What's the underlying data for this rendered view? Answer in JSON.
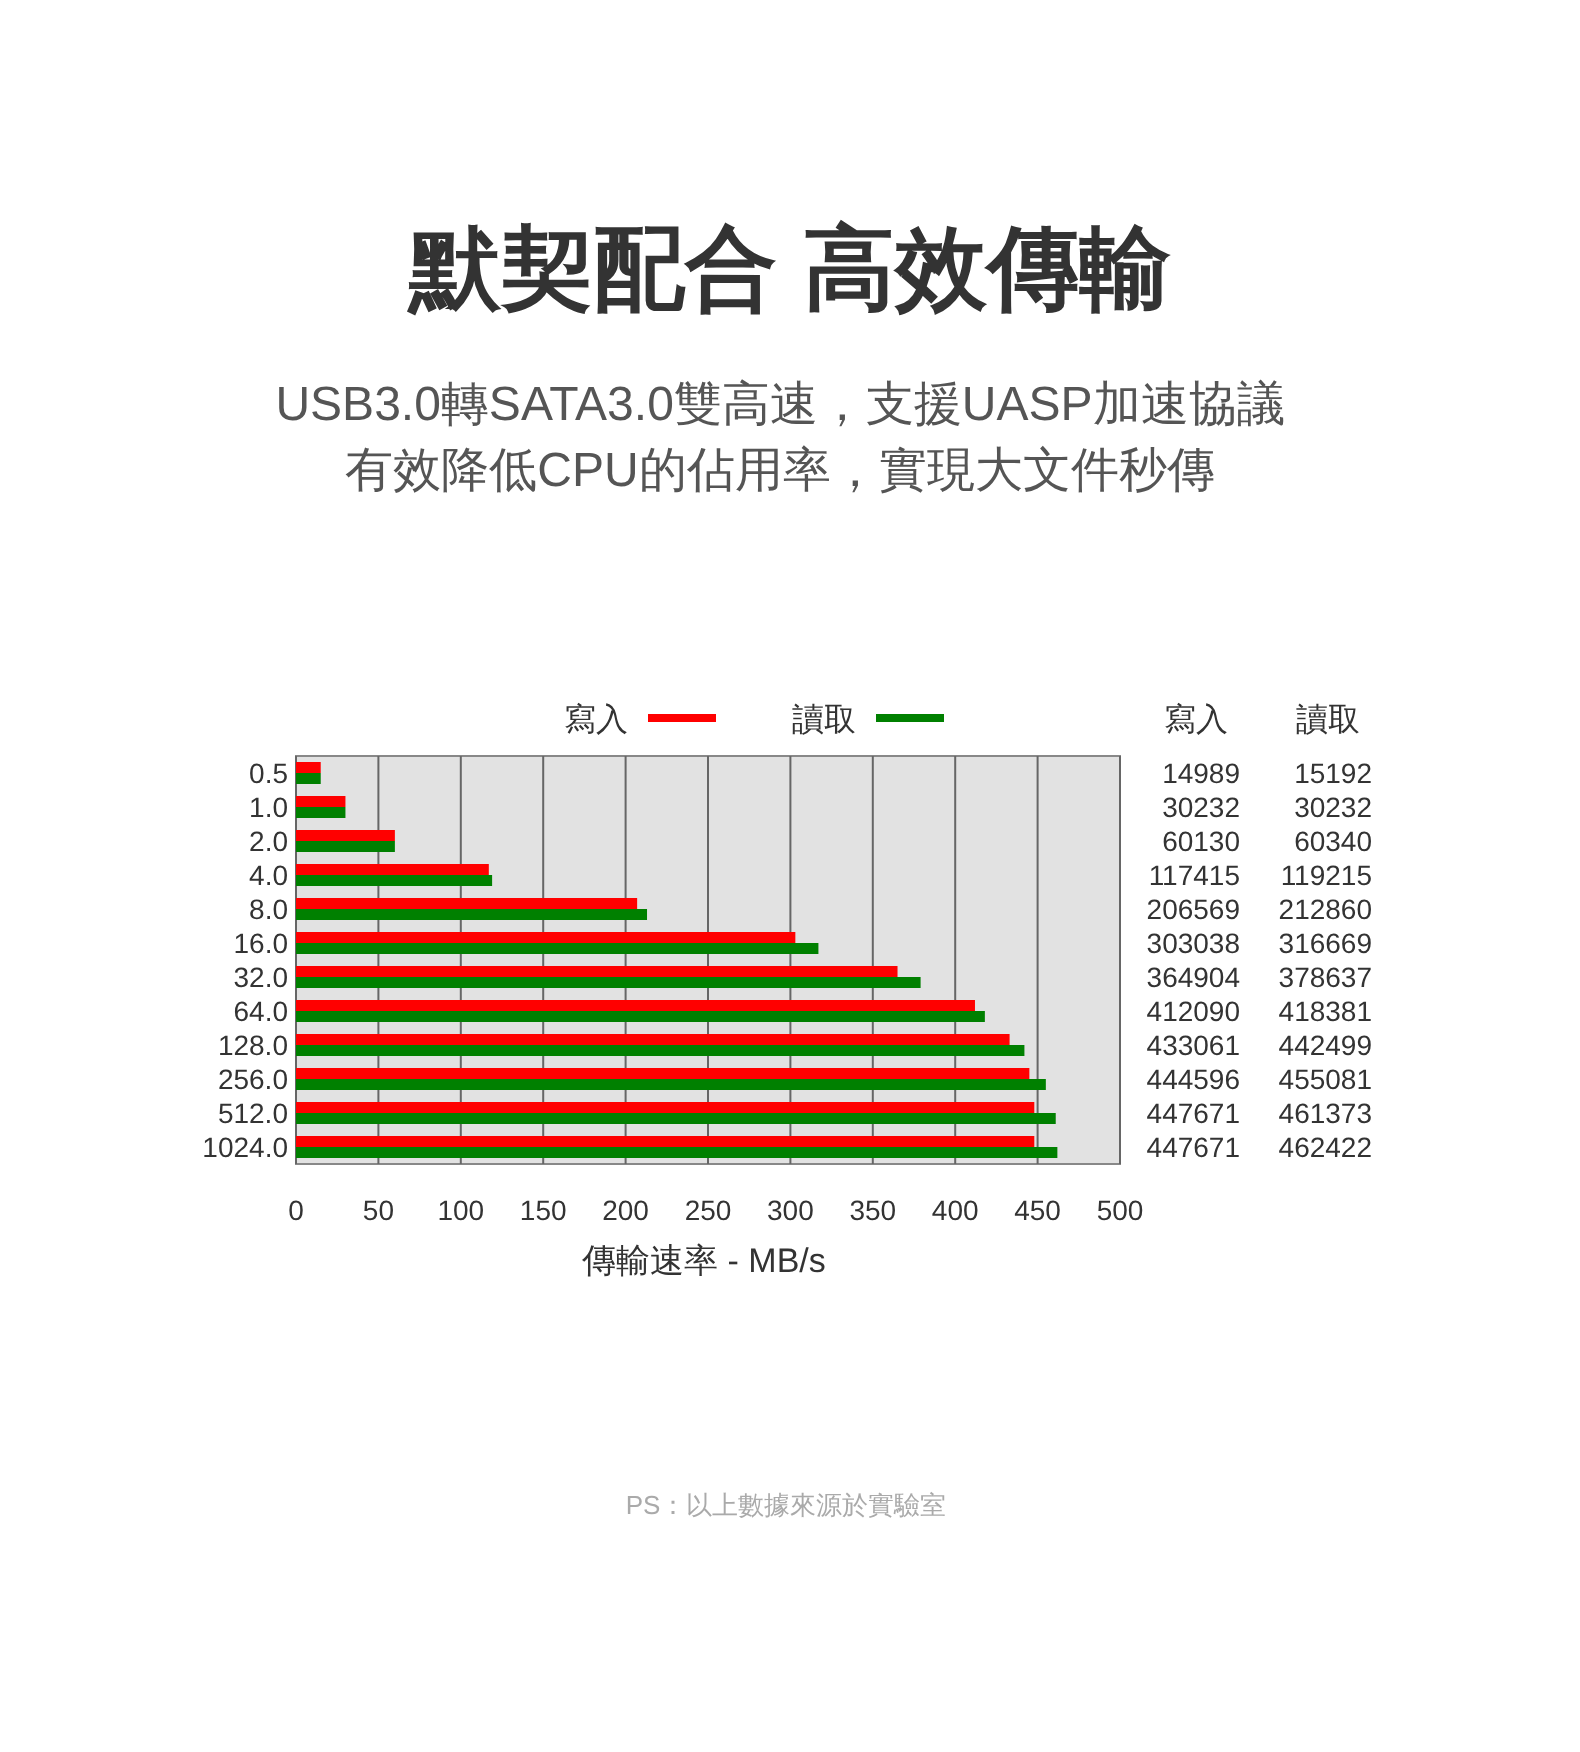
{
  "chart_data": {
    "type": "bar",
    "orientation": "horizontal",
    "title": "默契配合 高效傳輸",
    "subtitle": "USB3.0轉SATA3.0雙高速，支援UASP加速協議有效降低CPU的佔用率，實現大文件秒傳",
    "xlabel": "傳輸速率 - MB/s",
    "categories": [
      "0.5",
      "1.0",
      "2.0",
      "4.0",
      "8.0",
      "16.0",
      "32.0",
      "64.0",
      "128.0",
      "256.0",
      "512.0",
      "1024.0"
    ],
    "series": [
      {
        "name": "寫入",
        "color": "#ff0000",
        "values": [
          15,
          30,
          60,
          117,
          207,
          303,
          365,
          412,
          433,
          445,
          448,
          448
        ]
      },
      {
        "name": "讀取",
        "color": "#008000",
        "values": [
          15,
          30,
          60,
          119,
          213,
          317,
          379,
          418,
          442,
          455,
          461,
          462
        ]
      }
    ],
    "xlim": [
      0,
      500
    ],
    "xticks": [
      0,
      50,
      100,
      150,
      200,
      250,
      300,
      350,
      400,
      450,
      500
    ],
    "grid": "x",
    "legend": "top",
    "annotations": [
      "14989",
      "15192",
      "30232",
      "30232",
      "60130",
      "60340",
      "117415",
      "119215",
      "206569",
      "212860",
      "303038",
      "316669",
      "364904",
      "378637",
      "412090",
      "418381",
      "433061",
      "442499",
      "444596",
      "455081",
      "447671",
      "461373",
      "447671",
      "462422",
      "PS：以上數據來源於實驗室"
    ]
  }
}
